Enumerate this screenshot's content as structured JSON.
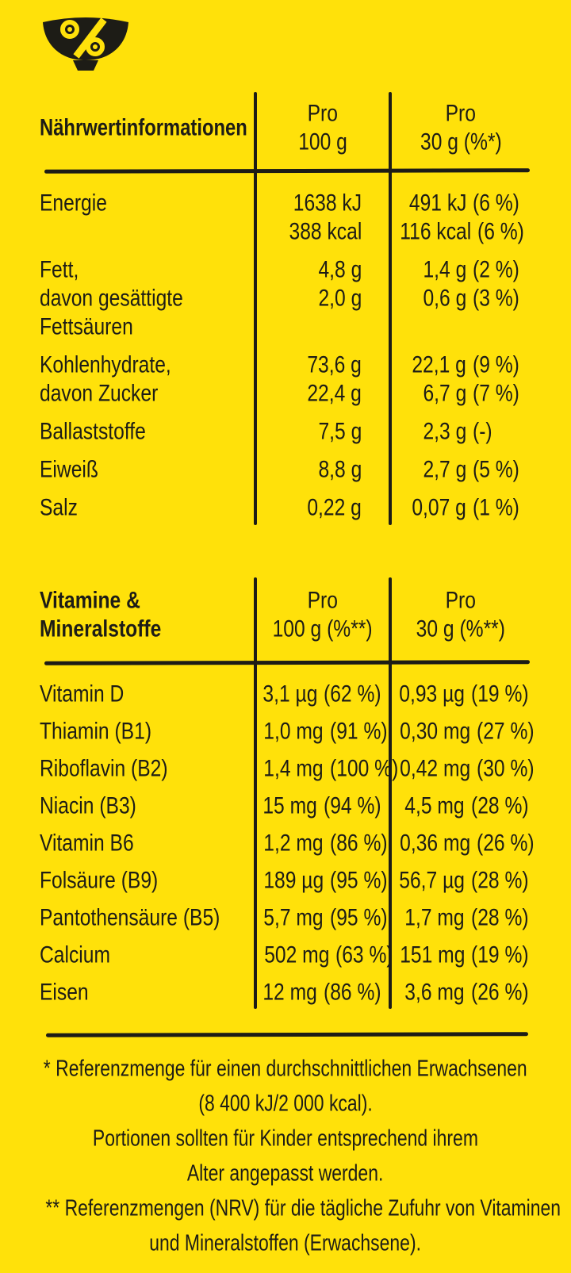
{
  "colors": {
    "background": "#FFE10A",
    "ink": "#1D1C16"
  },
  "icon": {
    "glyph": "%"
  },
  "nutrition_table": {
    "title": "Nährwertinformationen",
    "col_per100": {
      "line1": "Pro",
      "line2": "100 g"
    },
    "col_per30": {
      "line1": "Pro",
      "line2": "30 g (%*)"
    },
    "rows": [
      {
        "labels": [
          "Energie"
        ],
        "per100": [
          "1638 kJ",
          "388 kcal"
        ],
        "per30": [
          {
            "amount": "491 kJ",
            "pct": "(6 %)"
          },
          {
            "amount": "116 kcal",
            "pct": "(6 %)"
          }
        ]
      },
      {
        "labels": [
          "Fett,",
          "davon gesättigte",
          "Fettsäuren"
        ],
        "per100": [
          "4,8 g",
          "2,0 g"
        ],
        "per30": [
          {
            "amount": "1,4 g",
            "pct": "(2 %)"
          },
          {
            "amount": "0,6 g",
            "pct": "(3 %)"
          }
        ]
      },
      {
        "labels": [
          "Kohlenhydrate,",
          "davon Zucker"
        ],
        "per100": [
          "73,6 g",
          "22,4 g"
        ],
        "per30": [
          {
            "amount": "22,1 g",
            "pct": "(9 %)"
          },
          {
            "amount": "6,7 g",
            "pct": "(7 %)"
          }
        ]
      },
      {
        "labels": [
          "Ballaststoffe"
        ],
        "per100": [
          "7,5 g"
        ],
        "per30": [
          {
            "amount": "2,3 g",
            "pct": "(-)"
          }
        ]
      },
      {
        "labels": [
          "Eiweiß"
        ],
        "per100": [
          "8,8 g"
        ],
        "per30": [
          {
            "amount": "2,7 g",
            "pct": "(5 %)"
          }
        ]
      },
      {
        "labels": [
          "Salz"
        ],
        "per100": [
          "0,22 g"
        ],
        "per30": [
          {
            "amount": "0,07 g",
            "pct": "(1 %)"
          }
        ]
      }
    ]
  },
  "vitamins_table": {
    "title_line1": "Vitamine &",
    "title_line2": "Mineralstoffe",
    "col_per100": {
      "line1": "Pro",
      "line2": "100 g (%**)"
    },
    "col_per30": {
      "line1": "Pro",
      "line2": "30 g (%**)"
    },
    "rows": [
      {
        "label": "Vitamin D",
        "per100_amount": "3,1 µg",
        "per100_pct": "(62 %)",
        "per30_amount": "0,93 µg",
        "per30_pct": "(19 %)"
      },
      {
        "label": "Thiamin (B1)",
        "per100_amount": "1,0 mg",
        "per100_pct": "(91 %)",
        "per30_amount": "0,30 mg",
        "per30_pct": "(27 %)"
      },
      {
        "label": "Riboflavin (B2)",
        "per100_amount": "1,4 mg",
        "per100_pct": "(100 %)",
        "per30_amount": "0,42 mg",
        "per30_pct": "(30 %)"
      },
      {
        "label": "Niacin (B3)",
        "per100_amount": "15 mg",
        "per100_pct": "(94 %)",
        "per30_amount": "4,5 mg",
        "per30_pct": "(28 %)"
      },
      {
        "label": "Vitamin B6",
        "per100_amount": "1,2 mg",
        "per100_pct": "(86 %)",
        "per30_amount": "0,36 mg",
        "per30_pct": "(26 %)"
      },
      {
        "label": "Folsäure (B9)",
        "per100_amount": "189 µg",
        "per100_pct": "(95 %)",
        "per30_amount": "56,7 µg",
        "per30_pct": "(28 %)"
      },
      {
        "label": "Pantothensäure (B5)",
        "per100_amount": "5,7 mg",
        "per100_pct": "(95 %)",
        "per30_amount": "1,7 mg",
        "per30_pct": "(28 %)"
      },
      {
        "label": "Calcium",
        "per100_amount": "502 mg",
        "per100_pct": "(63 %)",
        "per30_amount": "151 mg",
        "per30_pct": "(19 %)"
      },
      {
        "label": "Eisen",
        "per100_amount": "12 mg",
        "per100_pct": "(86 %)",
        "per30_amount": "3,6 mg",
        "per30_pct": "(26 %)"
      }
    ]
  },
  "footnotes": {
    "lines": [
      "* Referenzmenge für einen durchschnittlichen Erwachsenen",
      "(8 400 kJ/2 000 kcal).",
      "Portionen sollten für Kinder entsprechend ihrem",
      "Alter angepasst werden.",
      "** Referenzmengen (NRV) für die tägliche Zufuhr von Vitaminen",
      "und Mineralstoffen (Erwachsene)."
    ]
  }
}
